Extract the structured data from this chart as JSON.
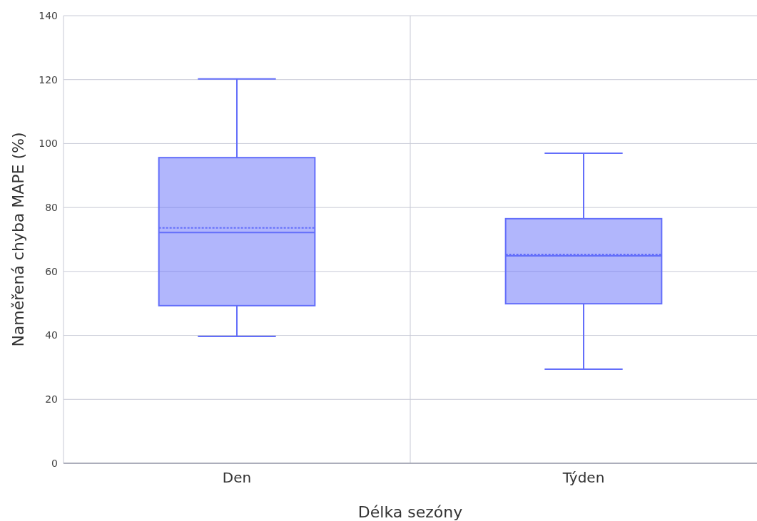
{
  "chart_data": {
    "type": "box",
    "xlabel": "Délka sezóny",
    "ylabel": "Naměřená chyba MAPE (%)",
    "categories": [
      "Den",
      "Týden"
    ],
    "color": "#636efa",
    "ylim": [
      0,
      140
    ],
    "yticks": [
      0,
      20,
      40,
      60,
      80,
      100,
      120,
      140
    ],
    "grid": true,
    "boxes": [
      {
        "low": 39.7,
        "q1": 49.3,
        "median": 72.2,
        "q3": 95.6,
        "high": 120.2,
        "mean": 73.6
      },
      {
        "low": 29.4,
        "q1": 49.9,
        "median": 64.9,
        "q3": 76.5,
        "high": 97,
        "mean": 65.3
      }
    ]
  }
}
